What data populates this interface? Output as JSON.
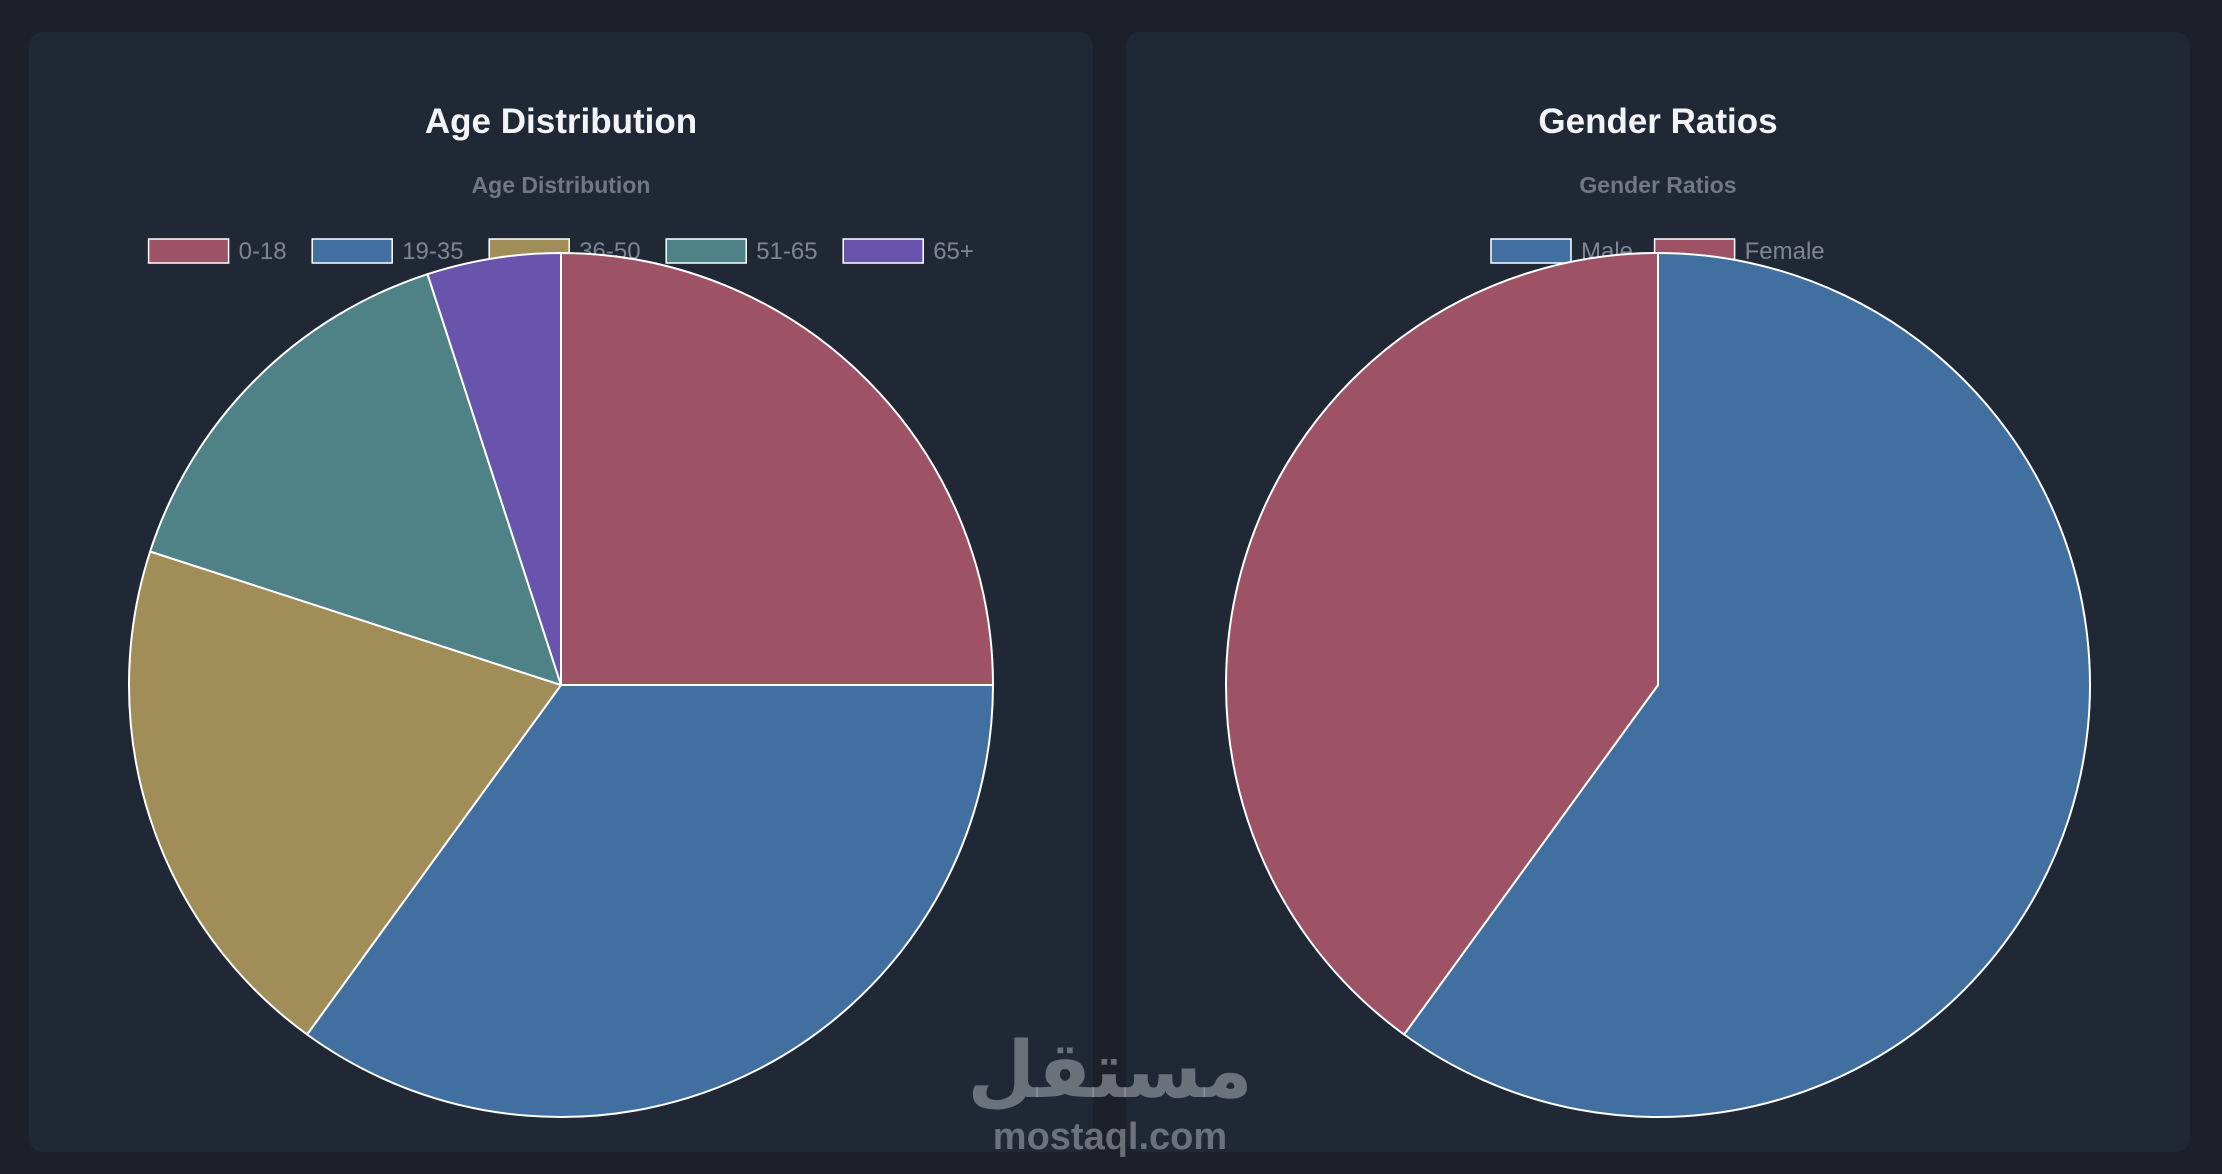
{
  "chart_data": [
    {
      "type": "pie",
      "title": "Age Distribution",
      "subtitle": "Age Distribution",
      "legend_position": "top",
      "categories": [
        "0-18",
        "19-35",
        "36-50",
        "51-65",
        "65+"
      ],
      "values": [
        25,
        35,
        20,
        15,
        5
      ],
      "colors": [
        "#9d5265",
        "#4170a0",
        "#a18d57",
        "#4e8286",
        "#6854ad"
      ]
    },
    {
      "type": "pie",
      "title": "Gender Ratios",
      "subtitle": "Gender Ratios",
      "legend_position": "top",
      "categories": [
        "Male",
        "Female"
      ],
      "values": [
        60,
        40
      ],
      "colors": [
        "#4170a0",
        "#9d5265"
      ]
    }
  ],
  "watermark": {
    "arabic": "مستقل",
    "latin": "mostaql.com"
  }
}
